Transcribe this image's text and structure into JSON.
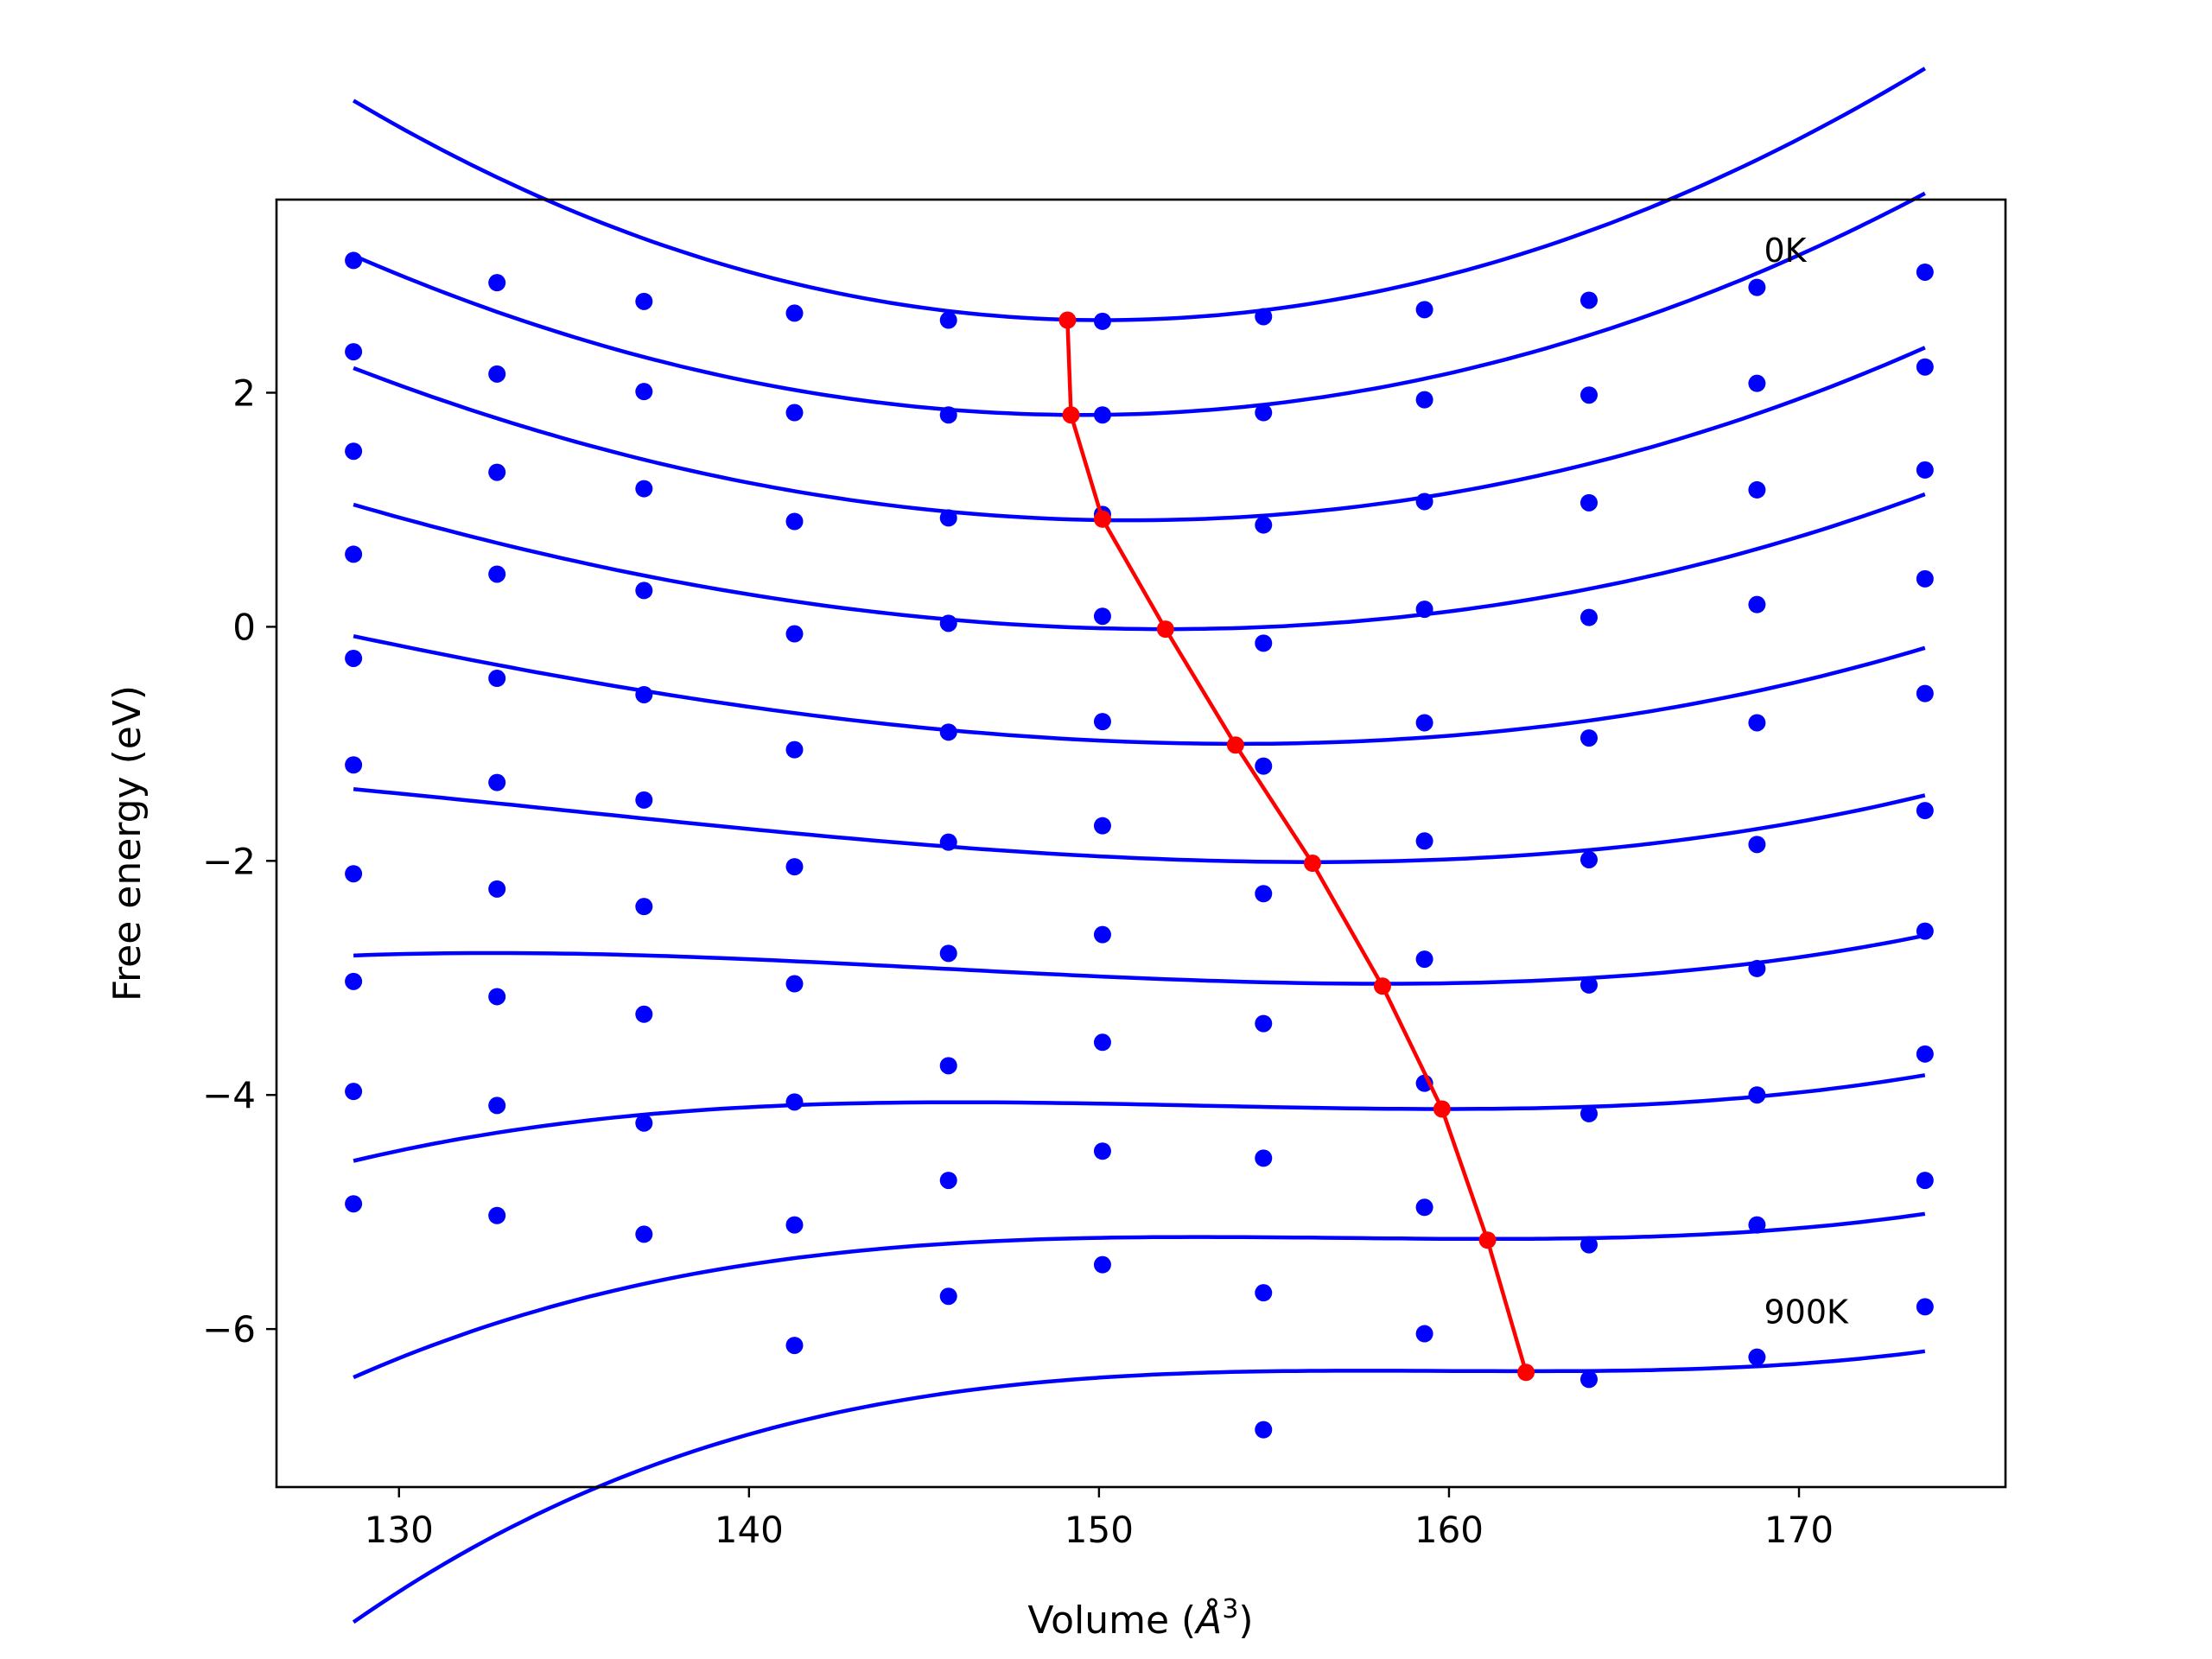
{
  "chart_data": {
    "type": "scatter",
    "title": "",
    "xlabel_main": "Volume (",
    "xlabel_symbol": "Å",
    "xlabel_exp": "3",
    "xlabel_close": ")",
    "ylabel": "Free energy (eV)",
    "xlim": [
      126.5,
      175.9
    ],
    "ylim": [
      -7.35,
      3.65
    ],
    "grid": false,
    "xticks": [
      130,
      140,
      150,
      160,
      170
    ],
    "xtick_labels": [
      "130",
      "140",
      "150",
      "160",
      "170"
    ],
    "yticks": [
      -6,
      -4,
      -2,
      0,
      2
    ],
    "ytick_labels": [
      "−6",
      "−4",
      "−2",
      "0",
      "2"
    ],
    "annotations": [
      {
        "text": "0K",
        "x": 169.0,
        "y": 3.12
      },
      {
        "text": "900K",
        "x": 169.0,
        "y": -5.95
      }
    ],
    "colors": {
      "points": "#0000ff",
      "fits": "#0000ff",
      "minimum_path": "#ff0000"
    },
    "volumes": [
      128.7,
      132.8,
      137.0,
      141.3,
      145.7,
      150.1,
      154.7,
      159.3,
      164.0,
      168.8,
      173.6
    ],
    "series": [
      {
        "points": [
          3.13,
          2.94,
          2.78,
          2.68,
          2.62,
          2.61,
          2.65,
          2.71,
          2.79,
          2.9,
          3.03
        ],
        "fit": {
          "min_x": 150.1,
          "min_y": 2.62,
          "a": 0.004,
          "b": -4.5e-06
        }
      },
      {
        "points": [
          2.35,
          2.16,
          2.01,
          1.83,
          1.81,
          1.81,
          1.83,
          1.94,
          1.98,
          2.08,
          2.22
        ],
        "fit": {
          "min_x": 149.5,
          "min_y": 1.81,
          "a": 0.0032,
          "b": 2.5e-06
        }
      },
      {
        "points": [
          1.5,
          1.32,
          1.18,
          0.9,
          0.93,
          0.96,
          0.87,
          1.07,
          1.06,
          1.17,
          1.34
        ],
        "fit": {
          "min_x": 150.9,
          "min_y": 0.91,
          "a": 0.00275,
          "b": 5e-06
        }
      },
      {
        "points": [
          0.62,
          0.45,
          0.31,
          -0.06,
          0.03,
          0.09,
          -0.14,
          0.15,
          0.08,
          0.19,
          0.41
        ],
        "fit": {
          "min_x": 151.9,
          "min_y": -0.02,
          "a": 0.00222,
          "b": 1.05e-05
        }
      },
      {
        "points": [
          -0.27,
          -0.44,
          -0.58,
          -1.05,
          -0.9,
          -0.81,
          -1.19,
          -0.82,
          -0.95,
          -0.82,
          -0.57
        ],
        "fit": {
          "min_x": 154.0,
          "min_y": -1.0,
          "a": 0.00183,
          "b": 1.55e-05
        }
      },
      {
        "points": [
          -1.18,
          -1.33,
          -1.48,
          -2.05,
          -1.84,
          -1.7,
          -2.28,
          -1.83,
          -1.99,
          -1.86,
          -1.57
        ],
        "fit": {
          "min_x": 156.1,
          "min_y": -2.01,
          "a": 0.00146,
          "b": 2.3e-05
        }
      },
      {
        "points": [
          -2.11,
          -2.24,
          -2.39,
          -3.05,
          -2.79,
          -2.63,
          -3.39,
          -2.84,
          -3.06,
          -2.92,
          -2.6
        ],
        "fit": {
          "min_x": 158.1,
          "min_y": -3.05,
          "a": 0.00122,
          "b": 3.2e-05
        }
      },
      {
        "points": [
          -3.03,
          -3.16,
          -3.31,
          -4.06,
          -3.75,
          -3.55,
          -4.54,
          -3.9,
          -4.16,
          -4.0,
          -3.65
        ],
        "fit": {
          "min_x": 159.8,
          "min_y": -4.12,
          "a": 0.00091,
          "b": 4.4e-05
        }
      },
      {
        "points": [
          -3.97,
          -4.09,
          -4.24,
          -5.11,
          -4.73,
          -4.48,
          -5.69,
          -4.96,
          -5.28,
          -5.11,
          -4.73
        ],
        "fit": {
          "min_x": 161.2,
          "min_y": -5.23,
          "a": 0.0007,
          "b": 5.6e-05
        }
      },
      {
        "points": [
          -4.93,
          -5.03,
          -5.19,
          -6.14,
          -5.72,
          -5.45,
          -6.86,
          -6.04,
          -6.43,
          -6.24,
          -5.81
        ],
        "fit": {
          "min_x": 162.3,
          "min_y": -6.36,
          "a": 0.00052,
          "b": 7.2e-05
        }
      }
    ],
    "minimum_path": {
      "x": [
        149.1,
        149.2,
        150.1,
        151.9,
        153.9,
        156.1,
        158.1,
        159.8,
        161.1,
        162.2
      ],
      "y": [
        2.62,
        1.81,
        0.92,
        -0.02,
        -1.01,
        -2.02,
        -3.07,
        -4.12,
        -5.24,
        -6.37
      ]
    }
  }
}
